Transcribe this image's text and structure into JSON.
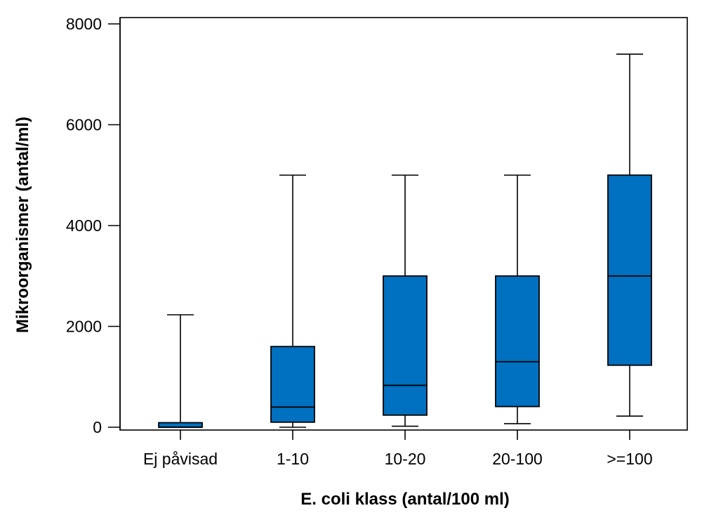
{
  "chart_data": {
    "type": "box",
    "title": "",
    "xlabel": "E. coli klass (antal/100 ml)",
    "ylabel": "Mikroorganismer (antal/ml)",
    "ylim": [
      0,
      8000
    ],
    "yticks": [
      0,
      2000,
      4000,
      6000,
      8000
    ],
    "grid": false,
    "box_color": "#0070C0",
    "categories": [
      "Ej påvisad",
      "1-10",
      "10-20",
      "20-100",
      ">=100"
    ],
    "boxes": [
      {
        "category": "Ej påvisad",
        "min": 0,
        "q1": 0,
        "median": 0,
        "q3": 90,
        "max": 2230
      },
      {
        "category": "1-10",
        "min": 0,
        "q1": 100,
        "median": 400,
        "q3": 1600,
        "max": 5000
      },
      {
        "category": "10-20",
        "min": 20,
        "q1": 240,
        "median": 830,
        "q3": 3000,
        "max": 5000
      },
      {
        "category": "20-100",
        "min": 70,
        "q1": 410,
        "median": 1300,
        "q3": 3000,
        "max": 5000
      },
      {
        "category": ">=100",
        "min": 220,
        "q1": 1230,
        "median": 3000,
        "q3": 5000,
        "max": 7400
      }
    ]
  }
}
